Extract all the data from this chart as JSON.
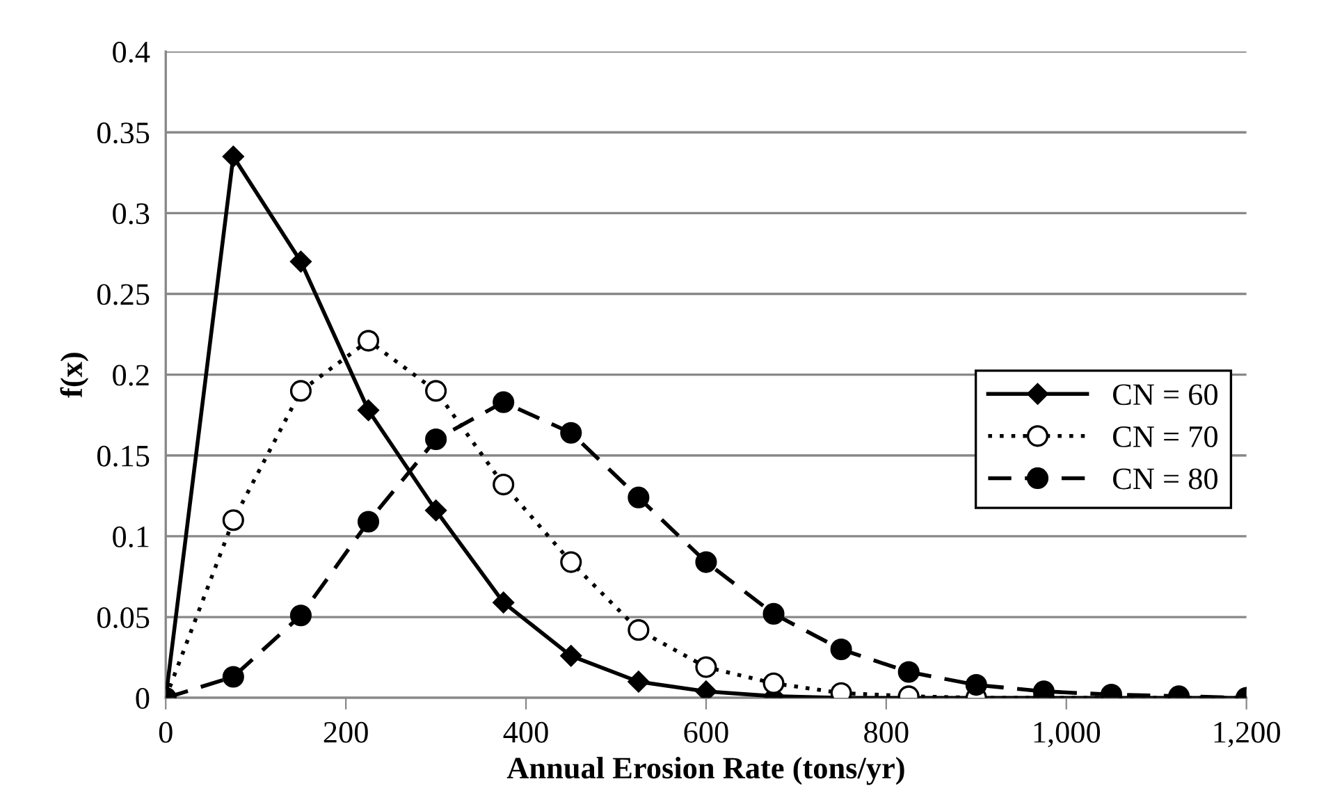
{
  "chart_data": {
    "type": "line",
    "xlabel": "Annual Erosion Rate (tons/yr)",
    "ylabel": "f(x)",
    "x": [
      0,
      75,
      150,
      225,
      300,
      375,
      450,
      525,
      600,
      675,
      750,
      825,
      900,
      975,
      1050,
      1125,
      1200
    ],
    "series": [
      {
        "name": "CN = 60",
        "color": "#000000",
        "marker": "diamond",
        "line_style": "solid",
        "values": [
          0,
          0.335,
          0.27,
          0.178,
          0.116,
          0.059,
          0.026,
          0.01,
          0.004,
          0.001,
          0,
          0,
          0,
          0,
          0,
          0,
          0
        ]
      },
      {
        "name": "CN = 70",
        "color": "#000000",
        "marker": "circle",
        "line_style": "dotted",
        "values": [
          0,
          0.11,
          0.19,
          0.221,
          0.19,
          0.132,
          0.084,
          0.042,
          0.019,
          0.009,
          0.003,
          0.001,
          0,
          0,
          0,
          0,
          0
        ]
      },
      {
        "name": "CN = 80",
        "color": "#000000",
        "marker": "circle",
        "line_style": "dashed",
        "values": [
          0,
          0.013,
          0.051,
          0.109,
          0.16,
          0.183,
          0.164,
          0.124,
          0.084,
          0.052,
          0.03,
          0.016,
          0.008,
          0.004,
          0.002,
          0.001,
          0
        ]
      }
    ],
    "xlim": [
      0,
      1200
    ],
    "xticks": [
      0,
      200,
      400,
      600,
      800,
      {
        "value": 1000,
        "label": "1,000"
      },
      {
        "value": 1200,
        "label": "1,200"
      }
    ],
    "ylim": [
      0,
      0.4
    ],
    "yticks": [
      0,
      0.05,
      0.1,
      0.15,
      0.2,
      0.25,
      0.3,
      0.35,
      0.4
    ],
    "grid": "y",
    "legend": "right"
  }
}
